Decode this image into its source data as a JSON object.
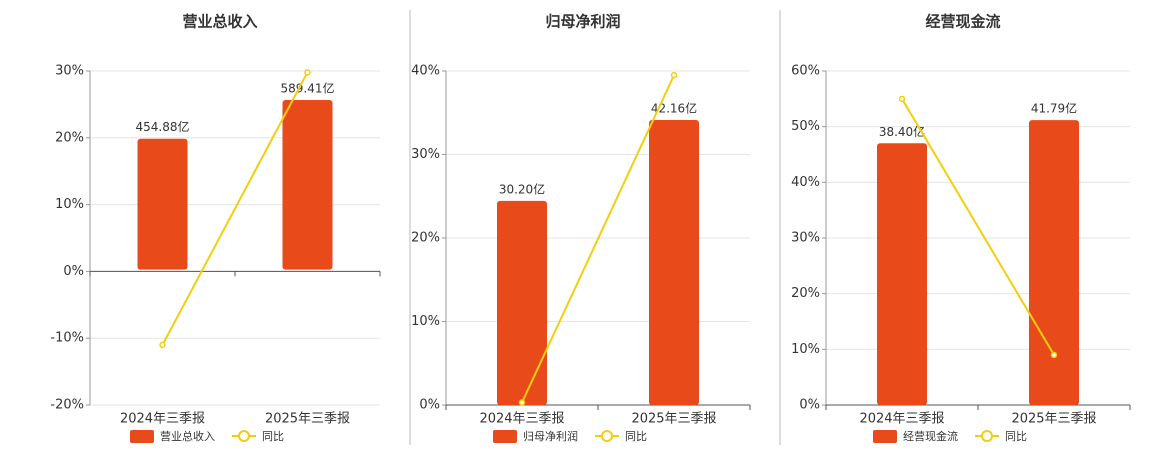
{
  "chart_data": [
    {
      "type": "bar",
      "title": "营业总收入",
      "categories": [
        "2024年三季报",
        "2025年三季报"
      ],
      "series": [
        {
          "name": "营业总收入",
          "color": "#e84a1a",
          "axis": "y2",
          "values": [
            454.88,
            589.41
          ],
          "value_labels": [
            "454.88亿",
            "589.41亿"
          ]
        },
        {
          "name": "同比",
          "color": "#f2cf0c",
          "type": "line",
          "values": [
            -11,
            29.8
          ]
        }
      ],
      "ylim": [
        -20,
        30
      ],
      "yticks": [
        {
          "value": -20,
          "label": "-20%"
        },
        {
          "value": -10,
          "label": "-10%"
        },
        {
          "value": 0,
          "label": "0%"
        },
        {
          "value": 10,
          "label": "10%"
        },
        {
          "value": 20,
          "label": "20%"
        },
        {
          "value": 30,
          "label": "30%"
        }
      ],
      "y2lim": [
        -470,
        690
      ],
      "grid": true
    },
    {
      "type": "bar",
      "title": "归母净利润",
      "categories": [
        "2024年三季报",
        "2025年三季报"
      ],
      "series": [
        {
          "name": "归母净利润",
          "color": "#e84a1a",
          "axis": "y2",
          "values": [
            30.2,
            42.16
          ],
          "value_labels": [
            "30.20亿",
            "42.16亿"
          ]
        },
        {
          "name": "同比",
          "color": "#f2cf0c",
          "type": "line",
          "values": [
            0.3,
            39.5
          ]
        }
      ],
      "ylim": [
        0,
        40
      ],
      "yticks": [
        {
          "value": 0,
          "label": "0%"
        },
        {
          "value": 10,
          "label": "10%"
        },
        {
          "value": 20,
          "label": "20%"
        },
        {
          "value": 30,
          "label": "30%"
        },
        {
          "value": 40,
          "label": "40%"
        }
      ],
      "y2lim": [
        0,
        49.4
      ],
      "grid": true
    },
    {
      "type": "bar",
      "title": "经营现金流",
      "categories": [
        "2024年三季报",
        "2025年三季报"
      ],
      "series": [
        {
          "name": "经营现金流",
          "color": "#e84a1a",
          "axis": "y2",
          "values": [
            38.4,
            41.79
          ],
          "value_labels": [
            "38.40亿",
            "41.79亿"
          ]
        },
        {
          "name": "同比",
          "color": "#f2cf0c",
          "type": "line",
          "values": [
            55,
            9
          ]
        }
      ],
      "ylim": [
        0,
        60
      ],
      "yticks": [
        {
          "value": 0,
          "label": "0%"
        },
        {
          "value": 10,
          "label": "10%"
        },
        {
          "value": 20,
          "label": "20%"
        },
        {
          "value": 30,
          "label": "30%"
        },
        {
          "value": 40,
          "label": "40%"
        },
        {
          "value": 50,
          "label": "50%"
        },
        {
          "value": 60,
          "label": "60%"
        }
      ],
      "y2lim": [
        0,
        49
      ],
      "grid": true
    }
  ]
}
